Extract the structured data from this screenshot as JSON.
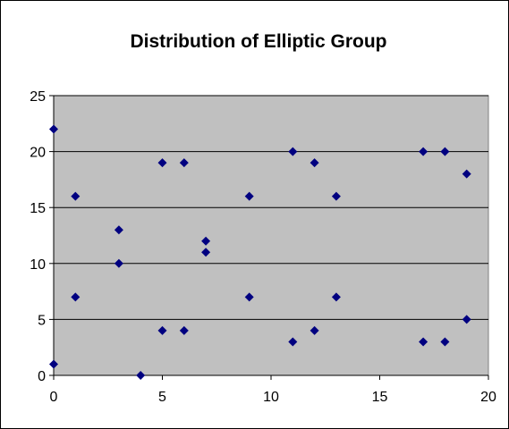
{
  "chart_data": {
    "type": "scatter",
    "title": "Distribution of Elliptic Group",
    "xlabel": "",
    "ylabel": "",
    "xlim": [
      0,
      20
    ],
    "ylim": [
      0,
      25
    ],
    "x_ticks": [
      0,
      5,
      10,
      15,
      20
    ],
    "y_ticks": [
      0,
      5,
      10,
      15,
      20,
      25
    ],
    "grid": "horizontal",
    "plot_background": "#C0C0C0",
    "marker_color": "#000080",
    "marker": "diamond",
    "legend": "none",
    "points": [
      {
        "x": 0,
        "y": 1
      },
      {
        "x": 0,
        "y": 22
      },
      {
        "x": 1,
        "y": 7
      },
      {
        "x": 1,
        "y": 16
      },
      {
        "x": 3,
        "y": 10
      },
      {
        "x": 3,
        "y": 13
      },
      {
        "x": 4,
        "y": 0
      },
      {
        "x": 5,
        "y": 4
      },
      {
        "x": 5,
        "y": 19
      },
      {
        "x": 6,
        "y": 4
      },
      {
        "x": 6,
        "y": 19
      },
      {
        "x": 7,
        "y": 11
      },
      {
        "x": 7,
        "y": 12
      },
      {
        "x": 9,
        "y": 7
      },
      {
        "x": 9,
        "y": 16
      },
      {
        "x": 11,
        "y": 3
      },
      {
        "x": 11,
        "y": 20
      },
      {
        "x": 12,
        "y": 4
      },
      {
        "x": 12,
        "y": 19
      },
      {
        "x": 13,
        "y": 7
      },
      {
        "x": 13,
        "y": 16
      },
      {
        "x": 17,
        "y": 3
      },
      {
        "x": 17,
        "y": 20
      },
      {
        "x": 18,
        "y": 3
      },
      {
        "x": 18,
        "y": 20
      },
      {
        "x": 19,
        "y": 5
      },
      {
        "x": 19,
        "y": 18
      }
    ]
  }
}
